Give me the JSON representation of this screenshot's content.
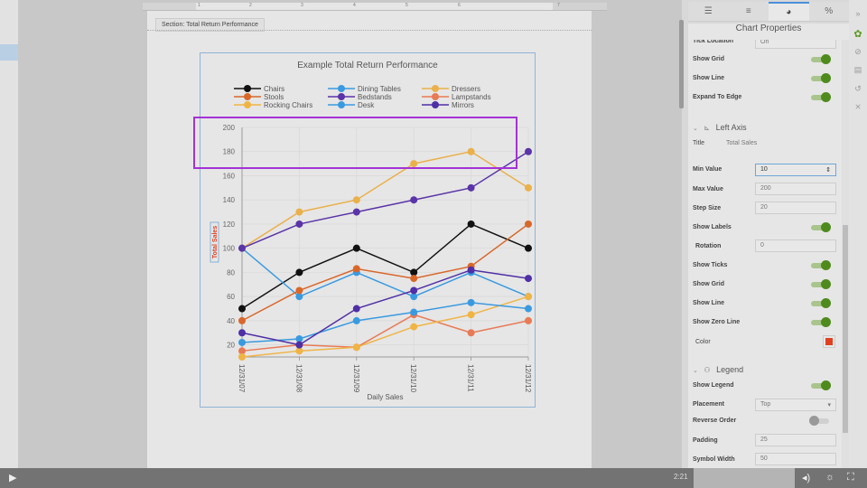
{
  "document": {
    "section_label": "Section: Total Return Performance",
    "ruler_marks": [
      "1",
      "2",
      "3",
      "4",
      "5",
      "6",
      "7"
    ]
  },
  "chart_data": {
    "type": "line",
    "title": "Example Total Return Performance",
    "xlabel": "Daily Sales",
    "ylabel": "Total Sales",
    "categories": [
      "12/31/07",
      "12/31/08",
      "12/31/09",
      "12/31/10",
      "12/31/11",
      "12/31/12"
    ],
    "ylim": [
      10,
      200
    ],
    "yticks": [
      20,
      40,
      60,
      80,
      100,
      120,
      140,
      160,
      180,
      200
    ],
    "grid": true,
    "legend_position": "top",
    "series": [
      {
        "name": "Chairs",
        "color": "#111111",
        "values": [
          50,
          80,
          100,
          80,
          120,
          100
        ]
      },
      {
        "name": "Dining Tables",
        "color": "#3a9ae0",
        "values": [
          100,
          60,
          80,
          60,
          80,
          60
        ]
      },
      {
        "name": "Dressers",
        "color": "#eab04a",
        "values": [
          100,
          130,
          140,
          170,
          180,
          150
        ]
      },
      {
        "name": "Stools",
        "color": "#d9672a",
        "values": [
          40,
          65,
          83,
          75,
          85,
          120
        ]
      },
      {
        "name": "Bedstands",
        "color": "#5a34a8",
        "values": [
          100,
          120,
          130,
          140,
          150,
          180
        ]
      },
      {
        "name": "Lampstands",
        "color": "#e87a55",
        "values": [
          15,
          20,
          18,
          45,
          30,
          40
        ]
      },
      {
        "name": "Rocking Chairs",
        "color": "#f0b445",
        "values": [
          10,
          15,
          18,
          35,
          45,
          60
        ]
      },
      {
        "name": "Desk",
        "color": "#3a9ae0",
        "values": [
          22,
          25,
          40,
          47,
          55,
          50
        ]
      },
      {
        "name": "Mirrors",
        "color": "#4f2fa6",
        "values": [
          30,
          20,
          50,
          65,
          82,
          75
        ]
      }
    ]
  },
  "panel": {
    "title": "Chart Properties",
    "tabs": [
      "tree-icon",
      "align-icon",
      "pie-chart-icon",
      "percent-icon"
    ],
    "partial_row_label": "Tick Location",
    "partial_row_value": "On",
    "top_rows": [
      {
        "label": "Show Grid",
        "on": true
      },
      {
        "label": "Show Line",
        "on": true
      },
      {
        "label": "Expand To Edge",
        "on": true
      }
    ],
    "left_axis": {
      "heading": "Left Axis",
      "title_label": "Title",
      "title_value": "Total Sales",
      "min_label": "Min Value",
      "min_value": "10",
      "max_label": "Max Value",
      "max_value": "200",
      "step_label": "Step Size",
      "step_value": "20",
      "show_labels": "Show Labels",
      "rotation_label": "Rotation",
      "rotation_value": "0",
      "show_ticks": "Show Ticks",
      "show_grid": "Show Grid",
      "show_line": "Show Line",
      "show_zero_line": "Show Zero Line",
      "color_label": "Color",
      "color_value": "#e04020"
    },
    "legend": {
      "heading": "Legend",
      "show_legend": "Show Legend",
      "placement_label": "Placement",
      "placement_value": "Top",
      "reverse_label": "Reverse Order",
      "padding_label": "Padding",
      "padding_value": "25",
      "symbol_width_label": "Symbol Width",
      "symbol_width_value": "50"
    }
  },
  "video": {
    "time": "2:21"
  }
}
